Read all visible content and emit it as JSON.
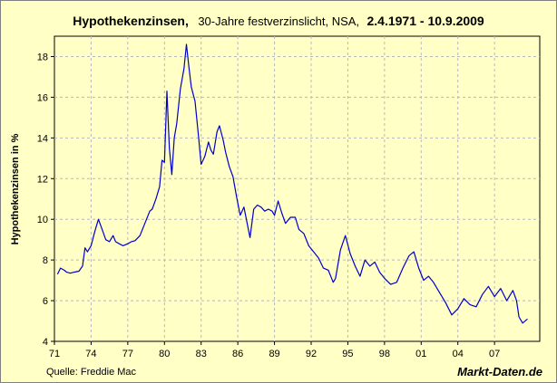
{
  "chart_data": {
    "type": "line",
    "title_main": "Hypothekenzinsen,",
    "title_sub": "30-Jahre festverzinslicht, NSA,",
    "title_range": "2.4.1971 - 10.9.2009",
    "ylabel": "Hypothekenzinsen in %",
    "xlabel": "",
    "xlim": [
      1971,
      2010.7
    ],
    "ylim": [
      4,
      19
    ],
    "x_ticks": [
      {
        "value": 1971,
        "label": "71"
      },
      {
        "value": 1974,
        "label": "74"
      },
      {
        "value": 1977,
        "label": "77"
      },
      {
        "value": 1980,
        "label": "80"
      },
      {
        "value": 1983,
        "label": "83"
      },
      {
        "value": 1986,
        "label": "86"
      },
      {
        "value": 1989,
        "label": "89"
      },
      {
        "value": 1992,
        "label": "92"
      },
      {
        "value": 1995,
        "label": "95"
      },
      {
        "value": 1998,
        "label": "98"
      },
      {
        "value": 2001,
        "label": "01"
      },
      {
        "value": 2004,
        "label": "04"
      },
      {
        "value": 2007,
        "label": "07"
      }
    ],
    "y_ticks": [
      4,
      6,
      8,
      10,
      12,
      14,
      16,
      18
    ],
    "grid": true,
    "line_color": "#0000cc",
    "series": [
      {
        "x": [
          1971.25,
          1971.5,
          1971.8,
          1972.0,
          1972.3,
          1972.6,
          1973.0,
          1973.3,
          1973.5,
          1973.7,
          1974.0,
          1974.3,
          1974.6,
          1974.9,
          1975.2,
          1975.5,
          1975.8,
          1976.0,
          1976.3,
          1976.6,
          1977.0,
          1977.3,
          1977.6,
          1978.0,
          1978.4,
          1978.8,
          1979.0,
          1979.3,
          1979.6,
          1979.8,
          1980.0,
          1980.2,
          1980.4,
          1980.6,
          1980.8,
          1981.0,
          1981.3,
          1981.6,
          1981.8,
          1982.0,
          1982.2,
          1982.5,
          1982.8,
          1983.0,
          1983.3,
          1983.6,
          1983.8,
          1984.0,
          1984.3,
          1984.5,
          1984.8,
          1985.0,
          1985.3,
          1985.6,
          1985.9,
          1986.2,
          1986.5,
          1986.8,
          1987.0,
          1987.3,
          1987.6,
          1987.9,
          1988.2,
          1988.5,
          1988.8,
          1989.0,
          1989.3,
          1989.6,
          1989.9,
          1990.3,
          1990.7,
          1991.0,
          1991.4,
          1991.8,
          1992.2,
          1992.6,
          1993.0,
          1993.4,
          1993.8,
          1994.0,
          1994.4,
          1994.8,
          1995.2,
          1995.6,
          1996.0,
          1996.4,
          1996.8,
          1997.2,
          1997.6,
          1998.0,
          1998.5,
          1999.0,
          1999.5,
          2000.0,
          2000.4,
          2000.8,
          2001.2,
          2001.6,
          2002.0,
          2002.5,
          2003.0,
          2003.5,
          2004.0,
          2004.5,
          2005.0,
          2005.5,
          2006.0,
          2006.5,
          2007.0,
          2007.5,
          2008.0,
          2008.5,
          2008.8,
          2009.0,
          2009.3,
          2009.7
        ],
        "y": [
          7.3,
          7.6,
          7.5,
          7.4,
          7.35,
          7.4,
          7.45,
          7.7,
          8.6,
          8.4,
          8.7,
          9.4,
          10.0,
          9.5,
          9.0,
          8.9,
          9.2,
          8.9,
          8.8,
          8.7,
          8.8,
          8.9,
          8.95,
          9.2,
          9.8,
          10.4,
          10.5,
          11.0,
          11.6,
          12.9,
          12.8,
          16.3,
          13.5,
          12.2,
          14.0,
          14.7,
          16.4,
          17.4,
          18.6,
          17.5,
          16.5,
          15.8,
          14.0,
          12.7,
          13.1,
          13.8,
          13.4,
          13.2,
          14.3,
          14.6,
          13.9,
          13.3,
          12.6,
          12.1,
          11.1,
          10.2,
          10.6,
          9.7,
          9.1,
          10.5,
          10.7,
          10.6,
          10.4,
          10.5,
          10.4,
          10.2,
          10.9,
          10.3,
          9.8,
          10.1,
          10.1,
          9.5,
          9.3,
          8.7,
          8.4,
          8.1,
          7.6,
          7.5,
          6.9,
          7.1,
          8.5,
          9.2,
          8.3,
          7.7,
          7.2,
          8.0,
          7.7,
          7.9,
          7.4,
          7.1,
          6.8,
          6.9,
          7.6,
          8.2,
          8.4,
          7.6,
          7.0,
          7.2,
          6.9,
          6.4,
          5.9,
          5.3,
          5.6,
          6.1,
          5.8,
          5.7,
          6.3,
          6.7,
          6.2,
          6.6,
          6.0,
          6.5,
          6.0,
          5.2,
          4.9,
          5.1
        ]
      }
    ]
  },
  "footer": {
    "source": "Quelle: Freddie Mac",
    "brand": "Markt-Daten.de"
  }
}
